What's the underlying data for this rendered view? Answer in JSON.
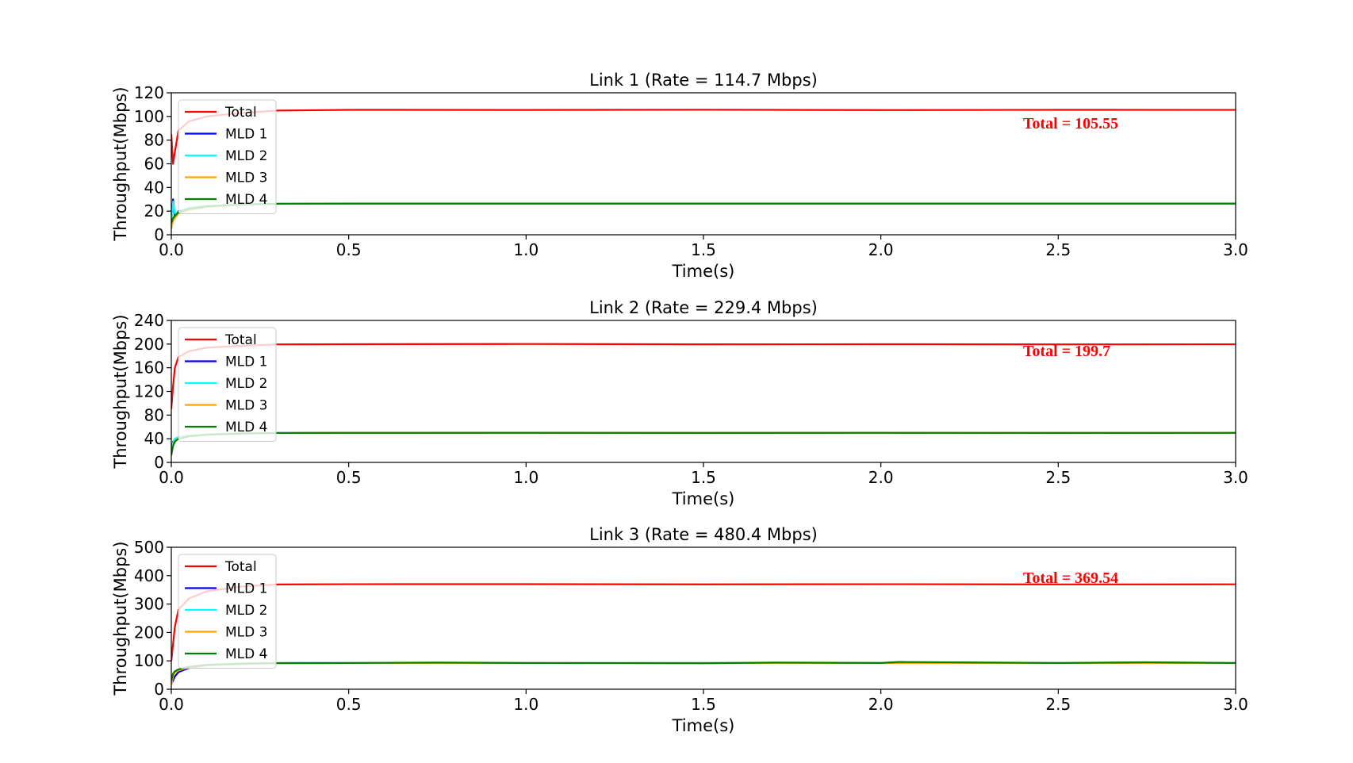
{
  "chart_data": [
    {
      "type": "line",
      "title": "Link 1 (Rate = 114.7 Mbps)",
      "xlabel": "Time(s)",
      "ylabel": "Throughput(Mbps)",
      "xlim": [
        0,
        3.0
      ],
      "ylim": [
        0,
        120
      ],
      "xticks": [
        "0.0",
        "0.5",
        "1.0",
        "1.5",
        "2.0",
        "2.5",
        "3.0"
      ],
      "yticks": [
        "0",
        "20",
        "40",
        "60",
        "80",
        "100",
        "120"
      ],
      "legend_position": "upper-left",
      "annotation": {
        "text": "Total = 105.55",
        "color": "#ff0000"
      },
      "series": [
        {
          "name": "Total",
          "color": "#ff0000",
          "x": [
            0,
            0.005,
            0.01,
            0.02,
            0.05,
            0.1,
            0.2,
            0.3,
            0.5,
            1.0,
            1.5,
            2.0,
            2.5,
            3.0
          ],
          "y": [
            85,
            60,
            70,
            88,
            96,
            100,
            103,
            105,
            105.6,
            105.5,
            105.7,
            105.4,
            105.6,
            105.55
          ]
        },
        {
          "name": "MLD 1",
          "color": "#0000ff",
          "x": [
            0,
            0.005,
            0.01,
            0.02,
            0.05,
            0.1,
            0.2,
            0.3,
            0.5,
            1.0,
            1.5,
            2.0,
            2.5,
            3.0
          ],
          "y": [
            8,
            30,
            15,
            20,
            22,
            24,
            25.5,
            26.2,
            26.4,
            26.4,
            26.4,
            26.4,
            26.4,
            26.4
          ]
        },
        {
          "name": "MLD 2",
          "color": "#00ffff",
          "x": [
            0,
            0.005,
            0.01,
            0.02,
            0.05,
            0.1,
            0.2,
            0.3,
            0.5,
            1.0,
            1.5,
            2.0,
            2.5,
            3.0
          ],
          "y": [
            6,
            28,
            18,
            19,
            23,
            24.5,
            25.8,
            26.3,
            26.4,
            26.4,
            26.4,
            26.4,
            26.4,
            26.4
          ]
        },
        {
          "name": "MLD 3",
          "color": "#ffa500",
          "x": [
            0,
            0.005,
            0.01,
            0.02,
            0.05,
            0.1,
            0.2,
            0.3,
            0.5,
            1.0,
            1.5,
            2.0,
            2.5,
            3.0
          ],
          "y": [
            5,
            12,
            14,
            18,
            21,
            23.5,
            25.5,
            26.2,
            26.4,
            26.4,
            26.4,
            26.4,
            26.4,
            26.4
          ]
        },
        {
          "name": "MLD 4",
          "color": "#008000",
          "x": [
            0,
            0.005,
            0.01,
            0.02,
            0.05,
            0.1,
            0.2,
            0.3,
            0.5,
            1.0,
            1.5,
            2.0,
            2.5,
            3.0
          ],
          "y": [
            10,
            14,
            16,
            19,
            22,
            24,
            25.6,
            26.2,
            26.4,
            26.4,
            26.4,
            26.4,
            26.4,
            26.4
          ]
        }
      ]
    },
    {
      "type": "line",
      "title": "Link 2 (Rate = 229.4 Mbps)",
      "xlabel": "Time(s)",
      "ylabel": "Throughput(Mbps)",
      "xlim": [
        0,
        3.0
      ],
      "ylim": [
        0,
        240
      ],
      "xticks": [
        "0.0",
        "0.5",
        "1.0",
        "1.5",
        "2.0",
        "2.5",
        "3.0"
      ],
      "yticks": [
        "0",
        "40",
        "80",
        "120",
        "160",
        "200",
        "240"
      ],
      "legend_position": "upper-left",
      "annotation": {
        "text": "Total = 199.7",
        "color": "#ff0000"
      },
      "series": [
        {
          "name": "Total",
          "color": "#ff0000",
          "x": [
            0,
            0.005,
            0.01,
            0.02,
            0.05,
            0.1,
            0.2,
            0.3,
            0.5,
            1.0,
            1.5,
            2.0,
            2.5,
            3.0
          ],
          "y": [
            90,
            130,
            160,
            178,
            188,
            194,
            197,
            199.5,
            199.8,
            200.2,
            199.6,
            199.8,
            199.5,
            199.7
          ]
        },
        {
          "name": "MLD 1",
          "color": "#0000ff",
          "x": [
            0,
            0.005,
            0.01,
            0.02,
            0.05,
            0.1,
            0.2,
            0.3,
            0.5,
            1.0,
            1.5,
            2.0,
            2.5,
            3.0
          ],
          "y": [
            20,
            35,
            38,
            42,
            45,
            47,
            49,
            49.8,
            49.9,
            49.9,
            49.9,
            49.9,
            49.9,
            49.9
          ]
        },
        {
          "name": "MLD 2",
          "color": "#00ffff",
          "x": [
            0,
            0.005,
            0.01,
            0.02,
            0.05,
            0.1,
            0.2,
            0.3,
            0.5,
            1.0,
            1.5,
            2.0,
            2.5,
            3.0
          ],
          "y": [
            18,
            33,
            40,
            43,
            45.5,
            47.5,
            49.2,
            49.8,
            49.9,
            49.9,
            49.9,
            49.9,
            49.9,
            49.9
          ]
        },
        {
          "name": "MLD 3",
          "color": "#ffa500",
          "x": [
            0,
            0.005,
            0.01,
            0.02,
            0.05,
            0.1,
            0.2,
            0.3,
            0.5,
            1.0,
            1.5,
            2.0,
            2.5,
            3.0
          ],
          "y": [
            15,
            30,
            36,
            41,
            44.5,
            47,
            49,
            49.7,
            49.9,
            49.9,
            49.9,
            49.9,
            49.9,
            49.9
          ]
        },
        {
          "name": "MLD 4",
          "color": "#008000",
          "x": [
            0,
            0.005,
            0.01,
            0.02,
            0.05,
            0.1,
            0.2,
            0.3,
            0.5,
            1.0,
            1.5,
            2.0,
            2.5,
            3.0
          ],
          "y": [
            12,
            28,
            35,
            40,
            44,
            46.8,
            48.8,
            49.7,
            49.9,
            50.1,
            49.8,
            50.0,
            49.8,
            49.9
          ]
        }
      ]
    },
    {
      "type": "line",
      "title": "Link 3 (Rate = 480.4 Mbps)",
      "xlabel": "Time(s)",
      "ylabel": "Throughput(Mbps)",
      "xlim": [
        0,
        3.0
      ],
      "ylim": [
        0,
        500
      ],
      "xticks": [
        "0.0",
        "0.5",
        "1.0",
        "1.5",
        "2.0",
        "2.5",
        "3.0"
      ],
      "yticks": [
        "0",
        "100",
        "200",
        "300",
        "400",
        "500"
      ],
      "legend_position": "upper-left",
      "annotation": {
        "text": "Total = 369.54",
        "color": "#ff0000"
      },
      "series": [
        {
          "name": "Total",
          "color": "#ff0000",
          "x": [
            0,
            0.005,
            0.01,
            0.02,
            0.05,
            0.1,
            0.2,
            0.3,
            0.5,
            1.0,
            1.5,
            2.0,
            2.5,
            3.0
          ],
          "y": [
            100,
            160,
            220,
            280,
            320,
            345,
            362,
            369,
            370,
            370.2,
            369.4,
            370,
            369.2,
            369.54
          ]
        },
        {
          "name": "MLD 1",
          "color": "#0000ff",
          "x": [
            0,
            0.005,
            0.01,
            0.02,
            0.05,
            0.1,
            0.2,
            0.3,
            0.5,
            1.0,
            1.5,
            2.0,
            2.5,
            3.0
          ],
          "y": [
            20,
            30,
            45,
            60,
            75,
            84,
            89,
            92,
            92.4,
            92.4,
            92.4,
            92.4,
            92.4,
            92.4
          ]
        },
        {
          "name": "MLD 2",
          "color": "#00ffff",
          "x": [
            0,
            0.005,
            0.01,
            0.02,
            0.05,
            0.1,
            0.2,
            0.3,
            0.5,
            1.0,
            1.5,
            2.0,
            2.5,
            3.0
          ],
          "y": [
            25,
            50,
            60,
            68,
            78,
            85,
            90,
            92,
            92.4,
            92.4,
            92.4,
            92.4,
            92.4,
            92.4
          ]
        },
        {
          "name": "MLD 3",
          "color": "#ffa500",
          "x": [
            0,
            0.005,
            0.01,
            0.02,
            0.05,
            0.1,
            0.2,
            0.3,
            0.5,
            1.0,
            1.5,
            2.0,
            2.5,
            3.0
          ],
          "y": [
            15,
            45,
            58,
            66,
            77,
            84,
            89.5,
            91.8,
            92.4,
            92.4,
            92.4,
            92.4,
            92.4,
            92.4
          ]
        },
        {
          "name": "MLD 4",
          "color": "#008000",
          "x": [
            0,
            0.005,
            0.01,
            0.02,
            0.05,
            0.1,
            0.2,
            0.3,
            0.5,
            0.75,
            1.0,
            1.5,
            1.7,
            2.0,
            2.05,
            2.5,
            2.75,
            3.0
          ],
          "y": [
            30,
            55,
            63,
            70,
            79,
            86,
            90.5,
            92.2,
            92.4,
            94,
            92.4,
            91.5,
            94,
            92.5,
            96,
            92.4,
            95,
            92.4
          ]
        }
      ]
    }
  ]
}
